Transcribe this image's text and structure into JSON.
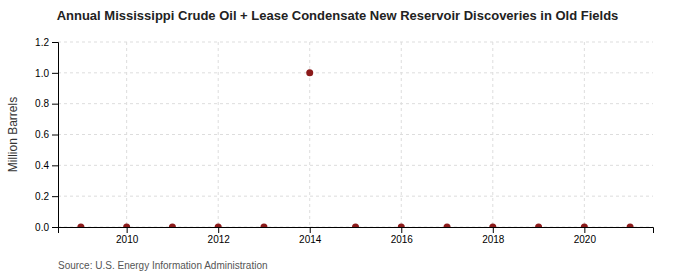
{
  "chart_data": {
    "type": "scatter",
    "title": "Annual Mississippi Crude Oil + Lease Condensate New Reservoir Discoveries in Old Fields",
    "y_label": "Million Barrels",
    "annotations": [
      "Source: U.S. Energy Information Administration"
    ],
    "x": [
      2009,
      2010,
      2011,
      2012,
      2013,
      2014,
      2015,
      2016,
      2017,
      2018,
      2019,
      2020,
      2021
    ],
    "values": [
      0.0,
      0.0,
      0.0,
      0.0,
      0.0,
      1.0,
      0.0,
      0.0,
      0.0,
      0.0,
      0.0,
      0.0,
      0.0
    ],
    "color": "#8b1a1a",
    "xlim": [
      2008.5,
      2021.5
    ],
    "xticks": [
      2010,
      2012,
      2014,
      2016,
      2018,
      2020
    ],
    "ylim": [
      0.0,
      1.2
    ],
    "yticks": [
      {
        "value": 0.0,
        "label": "0.0"
      },
      0.2,
      0.4,
      0.6,
      0.8,
      {
        "value": 1.0,
        "label": "1.0"
      },
      1.2
    ],
    "grid": true
  }
}
